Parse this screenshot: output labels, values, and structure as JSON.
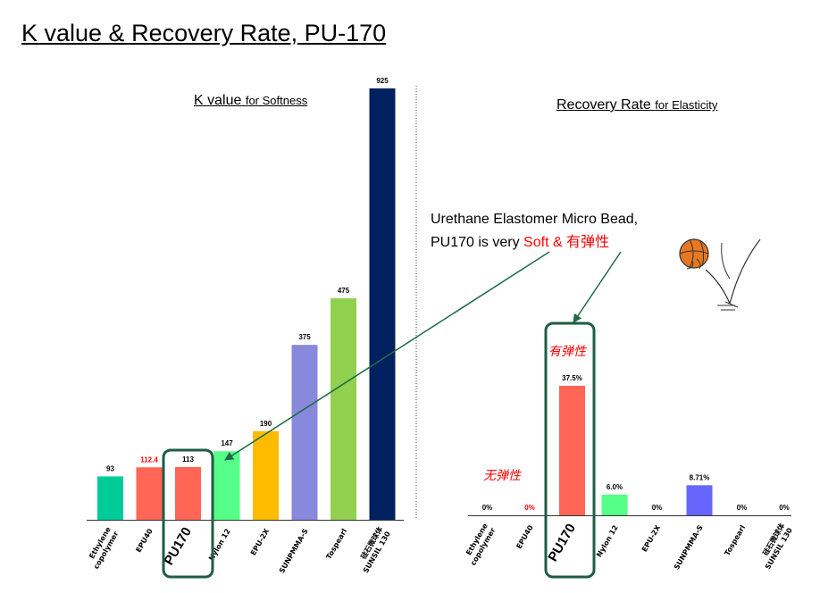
{
  "title": "K value & Recovery Rate, PU-170",
  "k_heading": {
    "main": "K value",
    "sub": "for Softness"
  },
  "r_heading": {
    "main": "Recovery Rate",
    "sub": "for Elasticity"
  },
  "callout": {
    "line1": "Urethane Elastomer Micro Bead,",
    "line2_prefix": "PU170 is very",
    "line2_highlight": "Soft & 有弹性"
  },
  "annotations": {
    "elastic": "有弹性",
    "inelastic": "无弹性"
  },
  "highlight_label": "PU170",
  "colors": {
    "highlight_box": "#1e5c45",
    "arrow": "#1e6b45",
    "red_label": "#ff0000"
  },
  "chart_data": [
    {
      "type": "bar",
      "title": "K value for Softness",
      "categories": [
        "Ethylene copolymer",
        "EPU40",
        "PU170",
        "Nylon 12",
        "EPU-2X",
        "SUNPMMA-S",
        "Tospearl",
        "硅石微球体 SUNSIL 130"
      ],
      "values": [
        93,
        112.4,
        113,
        147,
        190,
        375,
        475,
        925
      ],
      "value_labels": [
        "93",
        "112.4",
        "113",
        "147",
        "190",
        "375",
        "475",
        "925"
      ],
      "label_colors": [
        "#000000",
        "#ff0000",
        "#000000",
        "#000000",
        "#000000",
        "#000000",
        "#000000",
        "#000000"
      ],
      "bar_colors": [
        "#00cc99",
        "#ff6655",
        "#ff6655",
        "#55ff88",
        "#ffbb00",
        "#8888dd",
        "#92d050",
        "#002060"
      ],
      "highlight": "PU170",
      "ylim": [
        0,
        925
      ],
      "grid": false
    },
    {
      "type": "bar",
      "title": "Recovery Rate for Elasticity",
      "categories": [
        "Ethylene copolymer",
        "EPU40",
        "PU170",
        "Nylon 12",
        "EPU-2X",
        "SUNPMMA-S",
        "Tospearl",
        "硅石微球体 SUNSIL 130"
      ],
      "values": [
        0,
        0,
        37.5,
        6.0,
        0,
        8.71,
        0,
        0
      ],
      "value_labels": [
        "0%",
        "0%",
        "37.5%",
        "6.0%",
        "0%",
        "8.71%",
        "0%",
        "0%"
      ],
      "label_colors": [
        "#000000",
        "#ff0000",
        "#000000",
        "#000000",
        "#000000",
        "#000000",
        "#000000",
        "#000000"
      ],
      "bar_colors": [
        "#00cc99",
        "#ff6655",
        "#ff6655",
        "#55ff88",
        "#ffbb00",
        "#6666ff",
        "#92d050",
        "#002060"
      ],
      "highlight": "PU170",
      "ylim": [
        0,
        37.5
      ],
      "grid": false
    }
  ]
}
